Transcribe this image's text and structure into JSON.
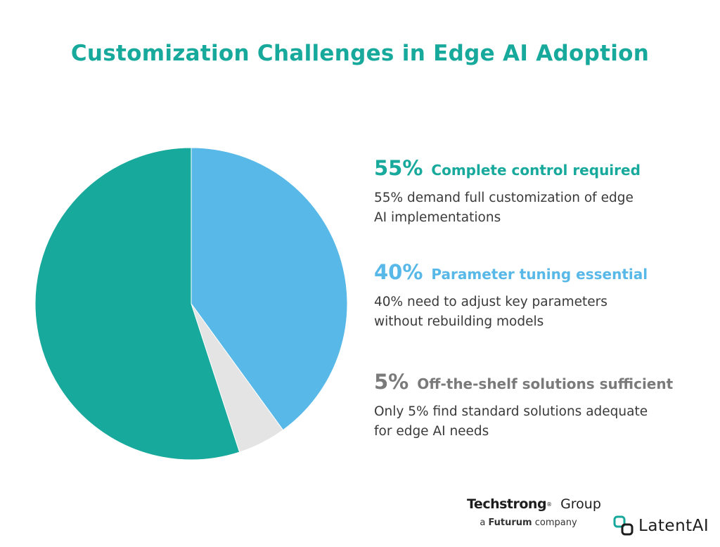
{
  "title": "Customization Challenges in Edge AI Adoption",
  "chart_data": {
    "type": "pie",
    "title": "Customization Challenges in Edge AI Adoption",
    "slices": [
      {
        "label": "Complete control required",
        "value": 55,
        "color": "#17a99b"
      },
      {
        "label": "Parameter tuning essential",
        "value": 40,
        "color": "#58b8e8"
      },
      {
        "label": "Off-the-shelf solutions sufficient",
        "value": 5,
        "color": "#e4e4e4"
      }
    ]
  },
  "stats": [
    {
      "percent": "55%",
      "heading": "Complete control required",
      "description": "55% demand full customization of edge AI implementations",
      "color": "#17a99b"
    },
    {
      "percent": "40%",
      "heading": "Parameter tuning essential",
      "description": "40% need to adjust key parameters without rebuilding models",
      "color": "#58b8e8"
    },
    {
      "percent": "5%",
      "heading": "Off-the-shelf solutions sufficient",
      "description": "Only 5% find standard solutions adequate for edge AI needs",
      "color": "#7a7a7a"
    }
  ],
  "footer": {
    "techstrong_brand": "Techstrong",
    "techstrong_tm": "®",
    "techstrong_group": "Group",
    "techstrong_prefix": "a",
    "techstrong_parent": "Futurum",
    "techstrong_suffix": "company",
    "latent_logo_text": "LatentAI"
  }
}
